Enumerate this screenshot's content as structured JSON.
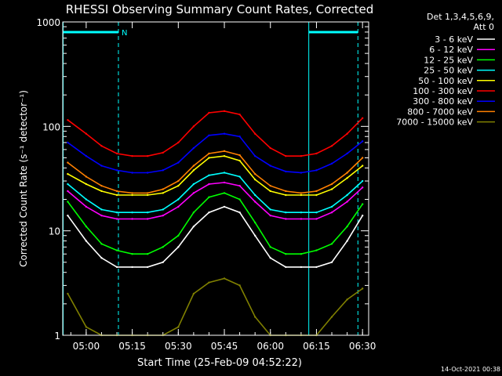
{
  "chart_data": {
    "type": "line",
    "title": "RHESSI Observing Summary Count Rates, Corrected",
    "xlabel": "Start Time (25-Feb-09 04:52:22)",
    "ylabel": "Corrected Count Rate (s⁻¹ detector⁻¹)",
    "y_scale": "log",
    "ylim": [
      1,
      1000
    ],
    "xlim": [
      "04:52:22",
      "06:32:00"
    ],
    "y_ticks": [
      "1",
      "10",
      "100",
      "1000"
    ],
    "x_ticks": [
      "05:00",
      "05:15",
      "05:30",
      "05:45",
      "06:00",
      "06:15",
      "06:30"
    ],
    "legend_header": [
      "Det 1,3,4,5,6,9,",
      "Att 0"
    ],
    "legend_position": "right",
    "footer_date": "14-Oct-2021 00:38",
    "attenuator_flags": [
      {
        "label": "N",
        "start": "04:52:22",
        "end": "05:10:30"
      },
      {
        "label": "",
        "start": "06:12:30",
        "end": "06:28:30"
      }
    ],
    "vertical_markers": {
      "solid": [
        "04:52:30",
        "06:12:30"
      ],
      "dashed": [
        "05:10:30",
        "06:28:30"
      ]
    },
    "x": [
      "04:54",
      "05:00",
      "05:05",
      "05:10",
      "05:15",
      "05:20",
      "05:25",
      "05:30",
      "05:35",
      "05:40",
      "05:45",
      "05:50",
      "05:55",
      "06:00",
      "06:05",
      "06:10",
      "06:15",
      "06:20",
      "06:25",
      "06:30"
    ],
    "series": [
      {
        "name": "3 - 6 keV",
        "color": "#ffffff",
        "values": [
          14,
          8,
          5.5,
          4.5,
          4.5,
          4.5,
          5,
          7,
          11,
          15,
          17,
          15,
          9,
          5.5,
          4.5,
          4.5,
          4.5,
          5,
          8,
          14
        ]
      },
      {
        "name": "6 - 12 keV",
        "color": "#ff00ff",
        "values": [
          24,
          17,
          14,
          13,
          13,
          13,
          14,
          17,
          23,
          28,
          29,
          27,
          19,
          14,
          13,
          13,
          13,
          15,
          19,
          26
        ]
      },
      {
        "name": "12 - 25 keV",
        "color": "#00ff00",
        "values": [
          19,
          11,
          7.5,
          6.5,
          6,
          6,
          7,
          9,
          15,
          21,
          23,
          20,
          12,
          7,
          6,
          6,
          6.5,
          7.5,
          11,
          18
        ]
      },
      {
        "name": "25 - 50 keV",
        "color": "#00ffff",
        "values": [
          28,
          20,
          16,
          15,
          15,
          15,
          16,
          20,
          28,
          34,
          36,
          33,
          22,
          16,
          15,
          15,
          15,
          17,
          22,
          30
        ]
      },
      {
        "name": "50 - 100 keV",
        "color": "#ffff00",
        "values": [
          35,
          28,
          24,
          22,
          22,
          22,
          23,
          27,
          38,
          50,
          52,
          47,
          31,
          24,
          22,
          22,
          22,
          25,
          32,
          42
        ]
      },
      {
        "name": "100 - 300 keV",
        "color": "#ff0000",
        "values": [
          115,
          85,
          65,
          55,
          52,
          52,
          56,
          70,
          100,
          135,
          140,
          130,
          85,
          62,
          52,
          52,
          55,
          65,
          85,
          120
        ]
      },
      {
        "name": "300 - 800 keV",
        "color": "#0000ff",
        "values": [
          70,
          52,
          42,
          38,
          36,
          36,
          38,
          45,
          62,
          82,
          85,
          80,
          52,
          42,
          37,
          36,
          38,
          44,
          55,
          72
        ]
      },
      {
        "name": "800 - 7000 keV",
        "color": "#ff8000",
        "values": [
          45,
          33,
          27,
          24,
          23,
          23,
          25,
          30,
          42,
          55,
          58,
          53,
          35,
          27,
          24,
          23,
          24,
          28,
          36,
          50
        ]
      },
      {
        "name": "7000 - 15000 keV",
        "color": "#808000",
        "values": [
          2.5,
          1.2,
          1,
          1,
          1,
          1,
          1,
          1.2,
          2.5,
          3.2,
          3.5,
          3,
          1.5,
          1,
          1,
          1,
          1,
          1.5,
          2.2,
          2.8
        ]
      }
    ]
  }
}
